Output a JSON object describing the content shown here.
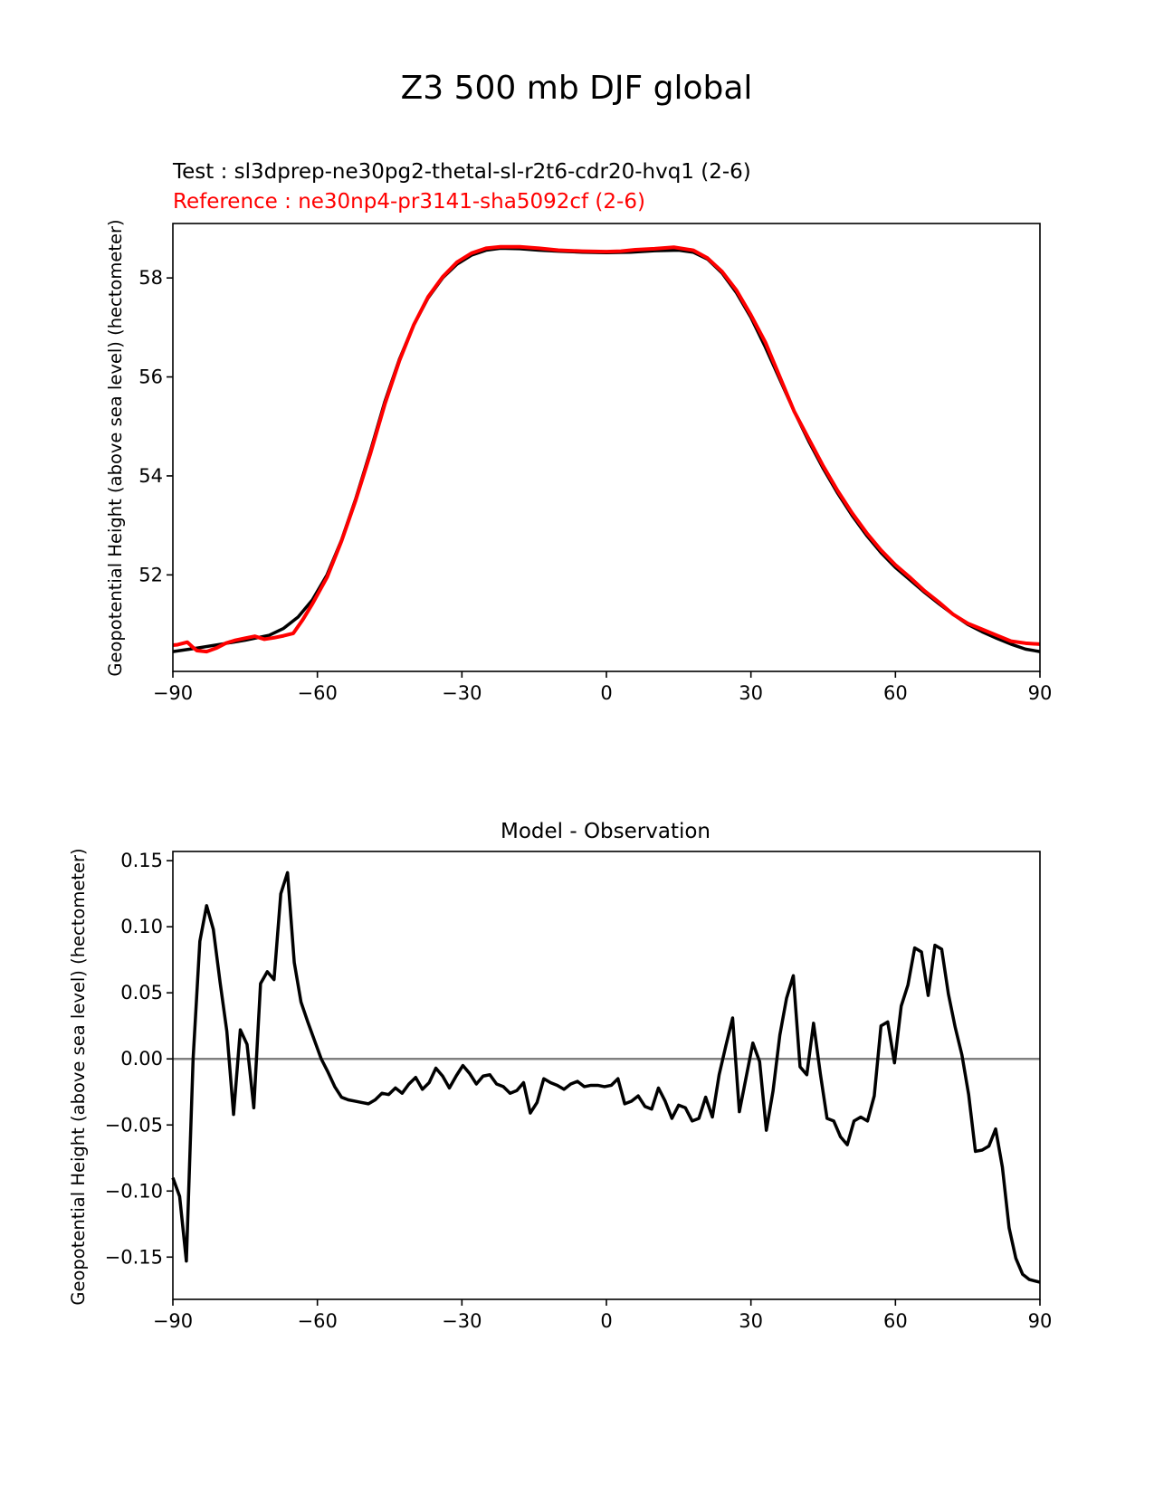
{
  "figure": {
    "suptitle": "Z3 500 mb DJF global"
  },
  "colors": {
    "test": "#000000",
    "reference": "#ff0000",
    "zero_line": "#808080"
  },
  "chart_data": [
    {
      "type": "line",
      "test_label": "Test : sl3dprep-ne30pg2-thetal-sl-r2t6-cdr20-hvq1 (2-6)",
      "reference_label": "Reference : ne30np4-pr3141-sha5092cf (2-6)",
      "xlabel": "",
      "ylabel": "Geopotential Height (above sea level) (hectometer)",
      "xlim": [
        -90,
        90
      ],
      "ylim": [
        50.05,
        59.1
      ],
      "xticks": [
        -90,
        -60,
        -30,
        0,
        30,
        60,
        90
      ],
      "xtick_labels": [
        "−90",
        "−60",
        "−30",
        "0",
        "30",
        "60",
        "90"
      ],
      "yticks": [
        52,
        54,
        56,
        58
      ],
      "ytick_labels": [
        "52",
        "54",
        "56",
        "58"
      ],
      "series": [
        {
          "name": "Test",
          "color": "#000000",
          "points": [
            [
              -90,
              50.45
            ],
            [
              -85,
              50.52
            ],
            [
              -80,
              50.6
            ],
            [
              -75,
              50.68
            ],
            [
              -70,
              50.78
            ],
            [
              -67,
              50.92
            ],
            [
              -64,
              51.15
            ],
            [
              -61,
              51.5
            ],
            [
              -58,
              52.0
            ],
            [
              -55,
              52.7
            ],
            [
              -52,
              53.55
            ],
            [
              -49,
              54.5
            ],
            [
              -46,
              55.5
            ],
            [
              -43,
              56.35
            ],
            [
              -40,
              57.05
            ],
            [
              -37,
              57.6
            ],
            [
              -34,
              58.0
            ],
            [
              -31,
              58.28
            ],
            [
              -28,
              58.46
            ],
            [
              -25,
              58.56
            ],
            [
              -22,
              58.6
            ],
            [
              -18,
              58.59
            ],
            [
              -14,
              58.56
            ],
            [
              -10,
              58.54
            ],
            [
              -5,
              58.52
            ],
            [
              0,
              58.51
            ],
            [
              5,
              58.52
            ],
            [
              10,
              58.55
            ],
            [
              15,
              58.56
            ],
            [
              18,
              58.52
            ],
            [
              21,
              58.38
            ],
            [
              24,
              58.1
            ],
            [
              27,
              57.7
            ],
            [
              30,
              57.2
            ],
            [
              33,
              56.6
            ],
            [
              36,
              55.95
            ],
            [
              39,
              55.3
            ],
            [
              42,
              54.7
            ],
            [
              45,
              54.15
            ],
            [
              48,
              53.65
            ],
            [
              51,
              53.2
            ],
            [
              54,
              52.8
            ],
            [
              57,
              52.45
            ],
            [
              60,
              52.15
            ],
            [
              63,
              51.9
            ],
            [
              66,
              51.65
            ],
            [
              69,
              51.42
            ],
            [
              72,
              51.2
            ],
            [
              75,
              51.0
            ],
            [
              78,
              50.85
            ],
            [
              81,
              50.72
            ],
            [
              84,
              50.6
            ],
            [
              87,
              50.5
            ],
            [
              90,
              50.45
            ]
          ]
        },
        {
          "name": "Reference",
          "color": "#ff0000",
          "points": [
            [
              -90,
              50.58
            ],
            [
              -89,
              50.59
            ],
            [
              -87,
              50.64
            ],
            [
              -86,
              50.55
            ],
            [
              -85,
              50.47
            ],
            [
              -83,
              50.45
            ],
            [
              -81,
              50.52
            ],
            [
              -79,
              50.62
            ],
            [
              -77,
              50.68
            ],
            [
              -75,
              50.72
            ],
            [
              -73,
              50.76
            ],
            [
              -71,
              50.7
            ],
            [
              -69,
              50.73
            ],
            [
              -67,
              50.77
            ],
            [
              -65,
              50.82
            ],
            [
              -63,
              51.1
            ],
            [
              -61,
              51.42
            ],
            [
              -58,
              51.95
            ],
            [
              -55,
              52.68
            ],
            [
              -52,
              53.52
            ],
            [
              -49,
              54.45
            ],
            [
              -46,
              55.45
            ],
            [
              -43,
              56.32
            ],
            [
              -40,
              57.05
            ],
            [
              -37,
              57.62
            ],
            [
              -34,
              58.02
            ],
            [
              -31,
              58.32
            ],
            [
              -28,
              58.5
            ],
            [
              -25,
              58.6
            ],
            [
              -22,
              58.63
            ],
            [
              -18,
              58.63
            ],
            [
              -14,
              58.6
            ],
            [
              -10,
              58.56
            ],
            [
              -5,
              58.54
            ],
            [
              0,
              58.53
            ],
            [
              3,
              58.54
            ],
            [
              6,
              58.57
            ],
            [
              10,
              58.59
            ],
            [
              14,
              58.62
            ],
            [
              18,
              58.56
            ],
            [
              21,
              58.4
            ],
            [
              24,
              58.13
            ],
            [
              27,
              57.75
            ],
            [
              30,
              57.25
            ],
            [
              33,
              56.7
            ],
            [
              36,
              56.0
            ],
            [
              39,
              55.3
            ],
            [
              42,
              54.75
            ],
            [
              45,
              54.2
            ],
            [
              48,
              53.7
            ],
            [
              51,
              53.25
            ],
            [
              54,
              52.85
            ],
            [
              57,
              52.5
            ],
            [
              60,
              52.2
            ],
            [
              63,
              51.95
            ],
            [
              66,
              51.68
            ],
            [
              69,
              51.45
            ],
            [
              72,
              51.2
            ],
            [
              75,
              51.02
            ],
            [
              78,
              50.9
            ],
            [
              81,
              50.78
            ],
            [
              84,
              50.66
            ],
            [
              87,
              50.62
            ],
            [
              90,
              50.6
            ]
          ]
        }
      ]
    },
    {
      "type": "line",
      "title": "Model - Observation",
      "xlabel": "",
      "ylabel": "Geopotential Height (above sea level) (hectometer)",
      "xlim": [
        -90,
        90
      ],
      "ylim": [
        -0.182,
        0.157
      ],
      "xticks": [
        -90,
        -60,
        -30,
        0,
        30,
        60,
        90
      ],
      "xtick_labels": [
        "−90",
        "−60",
        "−30",
        "0",
        "30",
        "60",
        "90"
      ],
      "yticks": [
        -0.15,
        -0.1,
        -0.05,
        0.0,
        0.05,
        0.1,
        0.15
      ],
      "ytick_labels": [
        "−0.15",
        "−0.10",
        "−0.05",
        "0.00",
        "0.05",
        "0.10",
        "0.15"
      ],
      "zero_line": 0,
      "series": [
        {
          "color": "#000000",
          "points": [
            [
              -90,
              -0.09
            ],
            [
              -88.6,
              -0.104
            ],
            [
              -87.2,
              -0.153
            ],
            [
              -85.8,
              0.0
            ],
            [
              -84.4,
              0.089
            ],
            [
              -83,
              0.116
            ],
            [
              -81.6,
              0.098
            ],
            [
              -80.2,
              0.058
            ],
            [
              -78.8,
              0.021
            ],
            [
              -77.4,
              -0.042
            ],
            [
              -76,
              0.022
            ],
            [
              -74.6,
              0.011
            ],
            [
              -73.2,
              -0.037
            ],
            [
              -71.8,
              0.057
            ],
            [
              -70.4,
              0.066
            ],
            [
              -69,
              0.06
            ],
            [
              -67.6,
              0.125
            ],
            [
              -66.2,
              0.141
            ],
            [
              -64.8,
              0.073
            ],
            [
              -63.4,
              0.043
            ],
            [
              -62,
              0.028
            ],
            [
              -60.6,
              0.014
            ],
            [
              -59.2,
              0.0
            ],
            [
              -57.8,
              -0.01
            ],
            [
              -56.4,
              -0.021
            ],
            [
              -55,
              -0.029
            ],
            [
              -53.6,
              -0.031
            ],
            [
              -52.2,
              -0.032
            ],
            [
              -50.8,
              -0.033
            ],
            [
              -49.4,
              -0.034
            ],
            [
              -48,
              -0.031
            ],
            [
              -46.6,
              -0.026
            ],
            [
              -45.2,
              -0.027
            ],
            [
              -43.8,
              -0.022
            ],
            [
              -42.4,
              -0.026
            ],
            [
              -41,
              -0.019
            ],
            [
              -39.6,
              -0.014
            ],
            [
              -38.2,
              -0.023
            ],
            [
              -36.8,
              -0.018
            ],
            [
              -35.4,
              -0.007
            ],
            [
              -34,
              -0.013
            ],
            [
              -32.6,
              -0.022
            ],
            [
              -31.2,
              -0.013
            ],
            [
              -29.8,
              -0.005
            ],
            [
              -28.4,
              -0.011
            ],
            [
              -27,
              -0.019
            ],
            [
              -25.6,
              -0.013
            ],
            [
              -24.2,
              -0.012
            ],
            [
              -22.8,
              -0.019
            ],
            [
              -21.4,
              -0.021
            ],
            [
              -20,
              -0.026
            ],
            [
              -18.6,
              -0.024
            ],
            [
              -17.2,
              -0.018
            ],
            [
              -15.8,
              -0.041
            ],
            [
              -14.4,
              -0.033
            ],
            [
              -13,
              -0.015
            ],
            [
              -11.6,
              -0.018
            ],
            [
              -10.2,
              -0.02
            ],
            [
              -8.8,
              -0.023
            ],
            [
              -7.4,
              -0.019
            ],
            [
              -6,
              -0.017
            ],
            [
              -4.6,
              -0.021
            ],
            [
              -3.2,
              -0.02
            ],
            [
              -1.8,
              -0.02
            ],
            [
              -0.4,
              -0.021
            ],
            [
              1,
              -0.02
            ],
            [
              2.4,
              -0.015
            ],
            [
              3.8,
              -0.034
            ],
            [
              5.2,
              -0.032
            ],
            [
              6.6,
              -0.028
            ],
            [
              8,
              -0.036
            ],
            [
              9.4,
              -0.038
            ],
            [
              10.8,
              -0.022
            ],
            [
              12.2,
              -0.032
            ],
            [
              13.6,
              -0.045
            ],
            [
              15,
              -0.035
            ],
            [
              16.4,
              -0.037
            ],
            [
              17.8,
              -0.047
            ],
            [
              19.2,
              -0.045
            ],
            [
              20.6,
              -0.029
            ],
            [
              22,
              -0.044
            ],
            [
              23.4,
              -0.012
            ],
            [
              24.8,
              0.01
            ],
            [
              26.2,
              0.031
            ],
            [
              27.6,
              -0.04
            ],
            [
              29,
              -0.014
            ],
            [
              30.4,
              0.012
            ],
            [
              31.8,
              -0.002
            ],
            [
              33.2,
              -0.054
            ],
            [
              34.6,
              -0.024
            ],
            [
              36,
              0.018
            ],
            [
              37.4,
              0.046
            ],
            [
              38.8,
              0.063
            ],
            [
              40.2,
              -0.006
            ],
            [
              41.6,
              -0.012
            ],
            [
              43,
              0.027
            ],
            [
              44.4,
              -0.011
            ],
            [
              45.8,
              -0.045
            ],
            [
              47.2,
              -0.047
            ],
            [
              48.6,
              -0.059
            ],
            [
              50,
              -0.065
            ],
            [
              51.4,
              -0.047
            ],
            [
              52.8,
              -0.044
            ],
            [
              54.2,
              -0.047
            ],
            [
              55.6,
              -0.028
            ],
            [
              57,
              0.025
            ],
            [
              58.4,
              0.028
            ],
            [
              59.8,
              -0.003
            ],
            [
              61.2,
              0.04
            ],
            [
              62.6,
              0.056
            ],
            [
              64,
              0.084
            ],
            [
              65.4,
              0.081
            ],
            [
              66.8,
              0.048
            ],
            [
              68.2,
              0.086
            ],
            [
              69.6,
              0.083
            ],
            [
              71,
              0.049
            ],
            [
              72.4,
              0.024
            ],
            [
              73.8,
              0.003
            ],
            [
              75.2,
              -0.027
            ],
            [
              76.6,
              -0.07
            ],
            [
              78,
              -0.069
            ],
            [
              79.4,
              -0.066
            ],
            [
              80.8,
              -0.053
            ],
            [
              82.2,
              -0.082
            ],
            [
              83.6,
              -0.128
            ],
            [
              85,
              -0.151
            ],
            [
              86.4,
              -0.163
            ],
            [
              87.8,
              -0.167
            ],
            [
              90,
              -0.169
            ]
          ]
        }
      ]
    }
  ]
}
